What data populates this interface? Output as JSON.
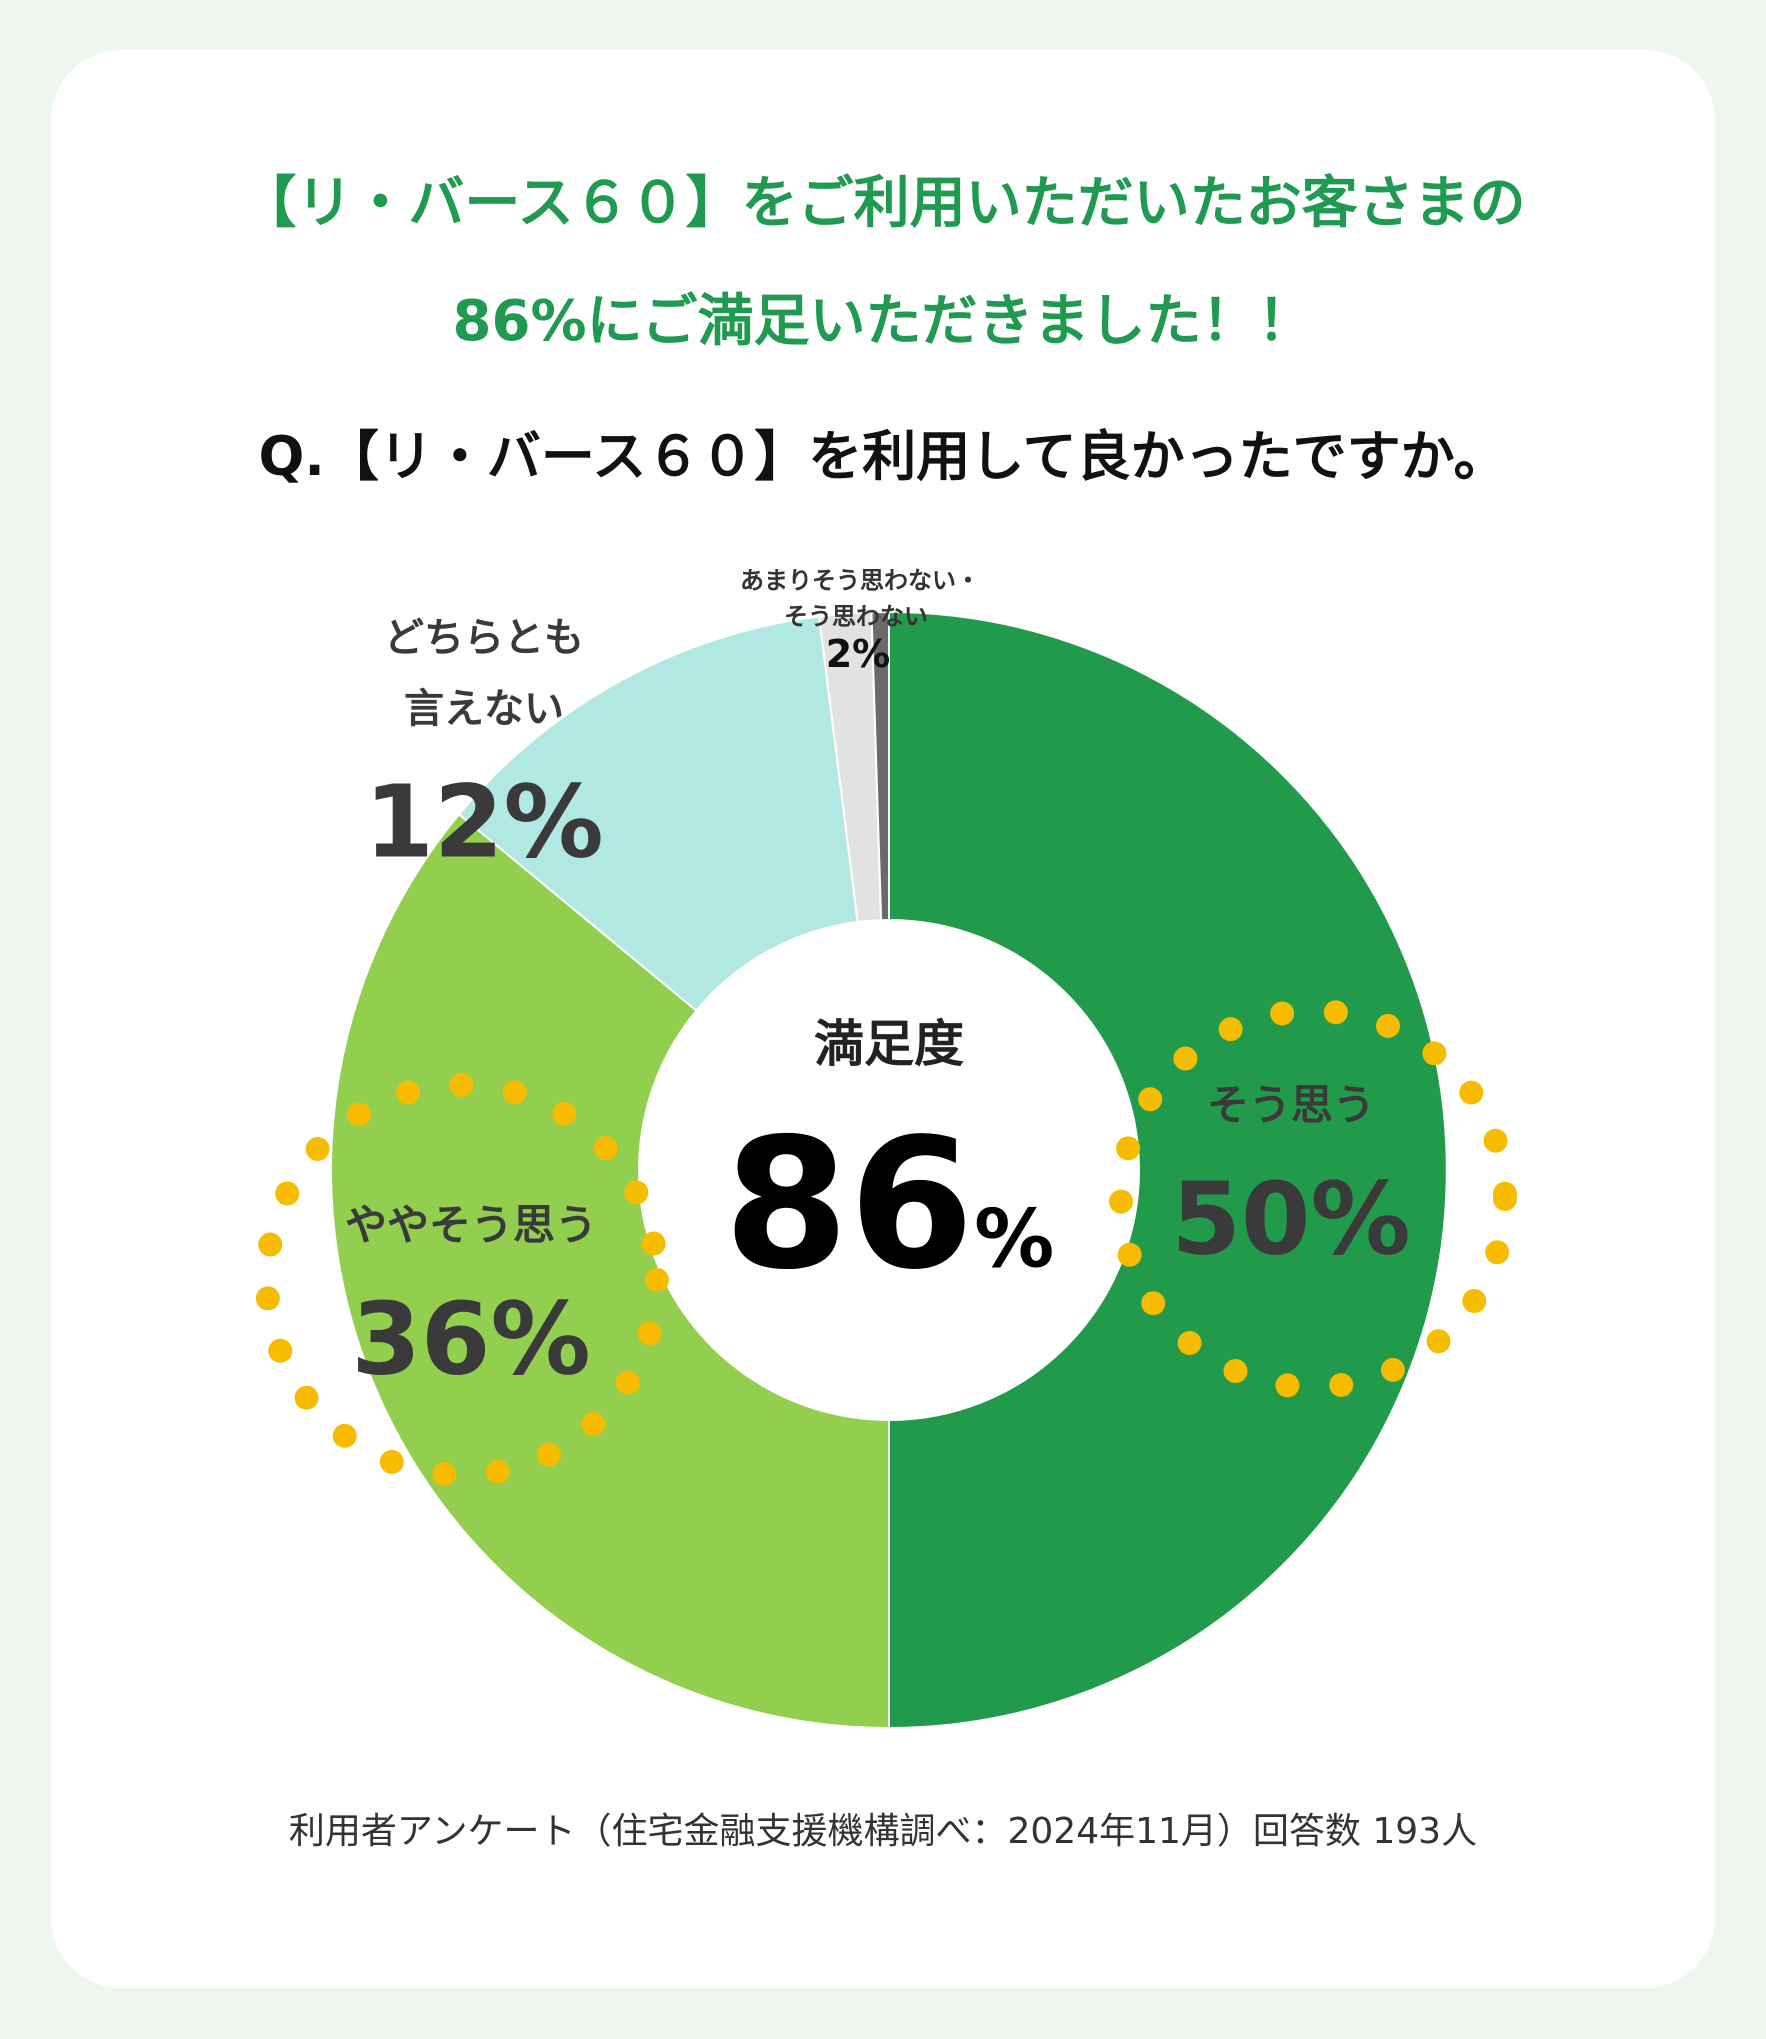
{
  "headline": {
    "line1": "【リ・バース６０】をご利用いただいたお客さまの",
    "line2": "86%にご満足いただきました！！"
  },
  "question": "Q.【リ・バース６０】を利用して良かったですか。",
  "center": {
    "label": "満足度",
    "value": "86",
    "unit": "%"
  },
  "footer": "利用者アンケート（住宅金融支援機構調べ：2024年11月）回答数 193人",
  "chart_data": {
    "type": "pie",
    "donut": true,
    "series": [
      {
        "name": "そう思う",
        "value": 50,
        "label": "50%",
        "color": "#229a4c"
      },
      {
        "name": "ややそう思う",
        "value": 36,
        "label": "36%",
        "color": "#92cf4e"
      },
      {
        "name": "どちらとも言えない",
        "label_lines": [
          "どちらとも",
          "言えない"
        ],
        "value": 12,
        "label": "12%",
        "color": "#b2e8e2"
      },
      {
        "name": "あまりそう思わない・そう思わない",
        "label_lines": [
          "あまりそう思わない・",
          "そう思わない"
        ],
        "value": 2,
        "label": "2%",
        "color": "#e2e2e2",
        "sub_values": [
          1.5,
          0.5
        ],
        "sub_colors": [
          "#e2e2e2",
          "#6a6a6a"
        ]
      }
    ],
    "highlighted": [
      "そう思う",
      "ややそう思う"
    ],
    "highlight_color": "#f7bc00",
    "start_angle": "top",
    "direction": "clockwise"
  }
}
